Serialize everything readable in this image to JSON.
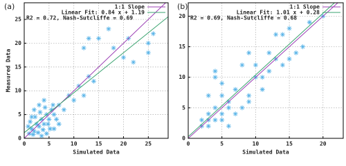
{
  "chart_data": [
    {
      "type": "scatter",
      "panel_label": "(a)",
      "x_label": "Simulated Data",
      "y_label": "Measured Data",
      "xlim": [
        0,
        29
      ],
      "ylim": [
        0,
        28.5
      ],
      "xticks": [
        0,
        5,
        10,
        15,
        20,
        25
      ],
      "yticks": [
        0,
        5,
        10,
        15,
        20,
        25
      ],
      "grid": true,
      "annotation": "R2 = 0.72,   Nash-Sutcliffe = 0.69",
      "lines": [
        {
          "name": "1:1 Slope",
          "color": "#9b3fb5",
          "x": [
            0,
            29
          ],
          "y": [
            0,
            29
          ]
        },
        {
          "name": "Linear Fit: 0.84 x + 1.19",
          "color": "#3aa36f",
          "x": [
            0,
            29
          ],
          "y": [
            1.19,
            25.55
          ]
        }
      ],
      "series": [
        {
          "color": "#5ab4e8",
          "x": [
            1,
            1.5,
            2,
            2.5,
            3,
            3.5,
            4,
            4.5,
            5,
            5.5,
            6,
            1.2,
            2.2,
            3.2,
            4.2,
            5.2,
            0.8,
            1.8,
            2.8,
            3.8,
            4.8,
            5.8,
            6.5,
            7,
            8,
            9,
            10,
            11,
            12,
            13,
            14,
            12,
            13,
            15,
            17,
            18,
            20,
            21,
            22,
            25,
            26,
            25,
            3,
            4,
            2,
            6,
            7,
            1.5,
            3.5,
            4.5
          ],
          "y": [
            1,
            2,
            1.5,
            3,
            2.5,
            4,
            3,
            5,
            4,
            6,
            5,
            3.5,
            4.5,
            5.5,
            6.5,
            2,
            2.5,
            0.8,
            1.2,
            1.8,
            3,
            7,
            4,
            7,
            6,
            9,
            8,
            11,
            9,
            13,
            12,
            19,
            21,
            21,
            23,
            19,
            17,
            21,
            16,
            20,
            22,
            18,
            7,
            8,
            6,
            2,
            3,
            4.5,
            0.5,
            1
          ]
        }
      ]
    },
    {
      "type": "scatter",
      "panel_label": "(b)",
      "x_label": "Simulated Data",
      "xlim": [
        0,
        23
      ],
      "ylim": [
        0,
        22.2
      ],
      "xticks": [
        0,
        5,
        10,
        15,
        20
      ],
      "yticks": [
        0,
        5,
        10,
        15,
        20
      ],
      "grid": true,
      "annotation": "R2 = 0.69,   Nash-Sutcliffe = 0.68",
      "lines": [
        {
          "name": "1:1 Slope",
          "color": "#9b3fb5",
          "x": [
            0,
            23
          ],
          "y": [
            0,
            23
          ]
        },
        {
          "name": "Linear Fit: 1.01 x + 0.28",
          "color": "#3aa36f",
          "x": [
            0,
            23
          ],
          "y": [
            0.28,
            23.51
          ]
        }
      ],
      "series": [
        {
          "color": "#5ab4e8",
          "x": [
            2,
            3,
            4,
            4,
            4,
            5,
            3,
            6,
            7,
            8,
            9,
            10,
            12,
            13,
            14,
            15,
            13,
            11,
            16,
            20,
            17,
            6,
            3,
            5,
            8,
            9,
            10,
            12,
            14,
            7,
            2,
            5,
            4,
            6,
            11,
            9,
            18,
            15,
            3,
            5
          ],
          "y": [
            2,
            3,
            5,
            10,
            11,
            7,
            7,
            5,
            8,
            12,
            14,
            12,
            11,
            17,
            17,
            18,
            13,
            8,
            14,
            20,
            15,
            2,
            2,
            3,
            5,
            7,
            10,
            14,
            12,
            4,
            3,
            4,
            3,
            6,
            10,
            6,
            19,
            13,
            4,
            9
          ]
        }
      ]
    }
  ]
}
